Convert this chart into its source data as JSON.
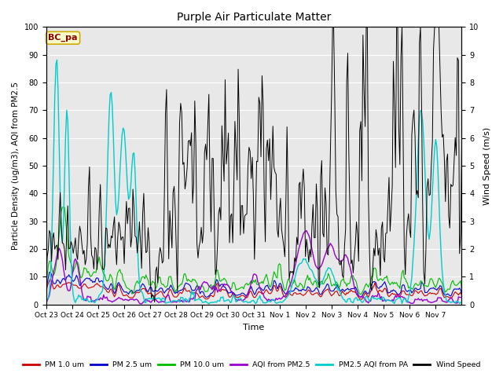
{
  "title": "Purple Air Particulate Matter",
  "xlabel": "Time",
  "ylabel_left": "Particle Density (ug/m3), AQI from PM2.5",
  "ylabel_right": "Wind Speed (m/s)",
  "ylim_left": [
    0,
    100
  ],
  "ylim_right": [
    0,
    10
  ],
  "x_tick_labels": [
    "Oct 23",
    "Oct 24",
    "Oct 25",
    "Oct 26",
    "Oct 27",
    "Oct 28",
    "Oct 29",
    "Oct 30",
    "Oct 31",
    "Nov 1",
    "Nov 2",
    "Nov 3",
    "Nov 4",
    "Nov 5",
    "Nov 6",
    "Nov 7"
  ],
  "annotation_text": "BC_pa",
  "annotation_bg": "#ffffcc",
  "annotation_border": "#ccaa00",
  "annotation_text_color": "#880000",
  "background_color": "#e8e8e8",
  "series": {
    "pm1": {
      "label": "PM 1.0 um",
      "color": "#cc0000",
      "lw": 0.8
    },
    "pm25": {
      "label": "PM 2.5 um",
      "color": "#0000cc",
      "lw": 0.8
    },
    "pm10": {
      "label": "PM 10.0 um",
      "color": "#00bb00",
      "lw": 0.8
    },
    "aqi": {
      "label": "AQI from PM2.5",
      "color": "#9900cc",
      "lw": 1.0
    },
    "pa_aqi": {
      "label": "PM2.5 AQI from PA",
      "color": "#00cccc",
      "lw": 1.0
    },
    "wind": {
      "label": "Wind Speed",
      "color": "#000000",
      "lw": 0.7
    }
  }
}
